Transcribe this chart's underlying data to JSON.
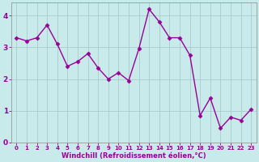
{
  "x": [
    0,
    1,
    2,
    3,
    4,
    5,
    6,
    7,
    8,
    9,
    10,
    11,
    12,
    13,
    14,
    15,
    16,
    17,
    18,
    19,
    20,
    21,
    22,
    23
  ],
  "y": [
    3.3,
    3.2,
    3.3,
    3.7,
    3.1,
    2.4,
    2.55,
    2.8,
    2.35,
    2.0,
    2.2,
    1.95,
    2.95,
    4.2,
    3.8,
    3.3,
    3.3,
    2.75,
    0.85,
    1.4,
    0.45,
    0.8,
    0.7,
    1.05
  ],
  "color": "#990099",
  "bg_color": "#c8eaea",
  "grid_color": "#aacccc",
  "xlabel": "Windchill (Refroidissement éolien,°C)",
  "xlabel_color": "#990099",
  "tick_color": "#990099",
  "spine_color": "#999999",
  "ylim": [
    0,
    4.4
  ],
  "xlim": [
    -0.5,
    23.5
  ],
  "yticks": [
    0,
    1,
    2,
    3,
    4
  ],
  "xticks": [
    0,
    1,
    2,
    3,
    4,
    5,
    6,
    7,
    8,
    9,
    10,
    11,
    12,
    13,
    14,
    15,
    16,
    17,
    18,
    19,
    20,
    21,
    22,
    23
  ],
  "marker": "D",
  "markersize": 2.5,
  "linewidth": 1.0,
  "xlabel_fontsize": 6.0,
  "xtick_fontsize": 5.0,
  "ytick_fontsize": 6.5
}
